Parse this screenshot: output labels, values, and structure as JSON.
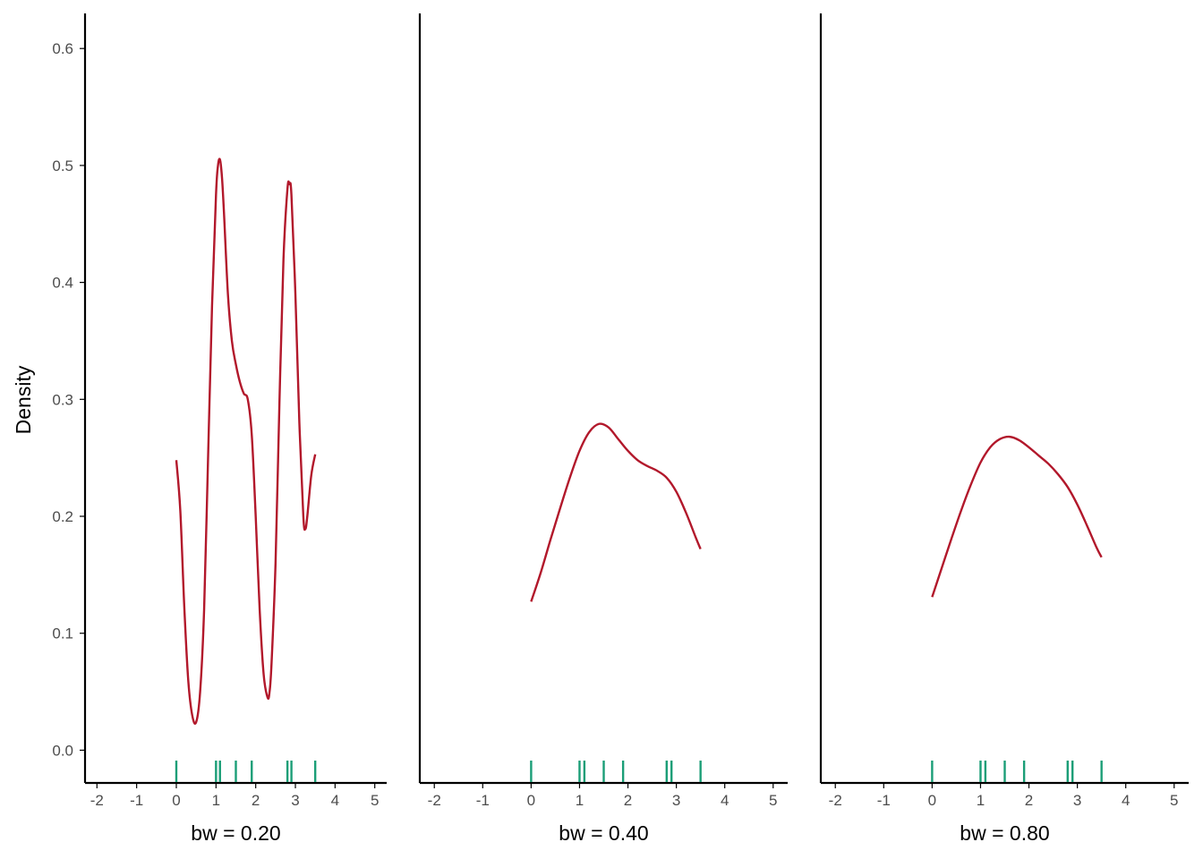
{
  "colors": {
    "curve": "#b2182b",
    "rug": "#1b9e77",
    "axis": "#000000",
    "tick_text": "#4d4d4d"
  },
  "chart_data": {
    "type": "line",
    "ylabel": "Density",
    "shared_y": true,
    "grid": false,
    "x_ticks": [
      "-2",
      "-1",
      "0",
      "1",
      "2",
      "3",
      "4",
      "5"
    ],
    "y_ticks": [
      "0.0",
      "0.1",
      "0.2",
      "0.3",
      "0.4",
      "0.5",
      "0.6"
    ],
    "xlim": [
      -2.3,
      5.3
    ],
    "ylim": [
      -0.028,
      0.63
    ],
    "rug_values": [
      0.0,
      1.0,
      1.1,
      1.5,
      1.9,
      2.8,
      2.9,
      3.5
    ],
    "panels": [
      {
        "xlabel": "bw = 0.20",
        "series": [
          {
            "x": [
              0.0,
              0.1,
              0.2,
              0.3,
              0.4,
              0.5,
              0.6,
              0.7,
              0.8,
              0.9,
              1.0,
              1.05,
              1.1,
              1.15,
              1.2,
              1.3,
              1.4,
              1.5,
              1.6,
              1.7,
              1.8,
              1.9,
              2.0,
              2.1,
              2.2,
              2.3,
              2.35,
              2.4,
              2.5,
              2.6,
              2.7,
              2.8,
              2.85,
              2.9,
              3.0,
              3.1,
              3.2,
              3.25,
              3.3,
              3.4,
              3.5
            ],
            "y": [
              0.248,
              0.205,
              0.123,
              0.06,
              0.03,
              0.024,
              0.05,
              0.12,
              0.25,
              0.38,
              0.475,
              0.5,
              0.505,
              0.49,
              0.46,
              0.39,
              0.35,
              0.33,
              0.315,
              0.305,
              0.3,
              0.27,
              0.2,
              0.12,
              0.065,
              0.045,
              0.05,
              0.075,
              0.16,
              0.3,
              0.42,
              0.48,
              0.484,
              0.475,
              0.39,
              0.28,
              0.2,
              0.189,
              0.2,
              0.235,
              0.253
            ]
          }
        ]
      },
      {
        "xlabel": "bw = 0.40",
        "series": [
          {
            "x": [
              0.0,
              0.2,
              0.4,
              0.6,
              0.8,
              1.0,
              1.2,
              1.4,
              1.6,
              1.8,
              2.0,
              2.2,
              2.4,
              2.6,
              2.8,
              3.0,
              3.2,
              3.4,
              3.5
            ],
            "y": [
              0.127,
              0.152,
              0.18,
              0.207,
              0.233,
              0.256,
              0.272,
              0.279,
              0.276,
              0.266,
              0.256,
              0.248,
              0.243,
              0.239,
              0.233,
              0.221,
              0.203,
              0.182,
              0.172
            ]
          }
        ]
      },
      {
        "xlabel": "bw = 0.80",
        "series": [
          {
            "x": [
              0.0,
              0.2,
              0.4,
              0.6,
              0.8,
              1.0,
              1.2,
              1.4,
              1.6,
              1.8,
              2.0,
              2.2,
              2.4,
              2.6,
              2.8,
              3.0,
              3.2,
              3.4,
              3.5
            ],
            "y": [
              0.131,
              0.156,
              0.181,
              0.205,
              0.227,
              0.246,
              0.259,
              0.266,
              0.268,
              0.265,
              0.259,
              0.252,
              0.245,
              0.236,
              0.225,
              0.21,
              0.192,
              0.173,
              0.165
            ]
          }
        ]
      }
    ]
  }
}
